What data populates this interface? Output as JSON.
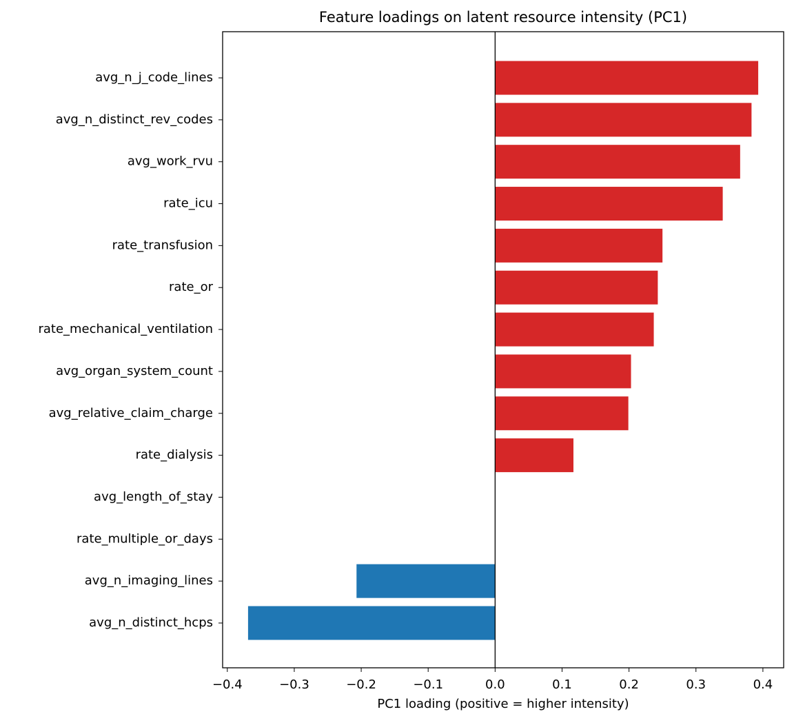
{
  "chart_data": {
    "type": "barh",
    "title": "Feature loadings on latent resource intensity (PC1)",
    "x_label": "PC1 loading (positive = higher intensity)",
    "categories": [
      "avg_n_j_code_lines",
      "avg_n_distinct_rev_codes",
      "avg_work_rvu",
      "rate_icu",
      "rate_transfusion",
      "rate_or",
      "rate_mechanical_ventilation",
      "avg_organ_system_count",
      "avg_relative_claim_charge",
      "rate_dialysis",
      "avg_length_of_stay",
      "rate_multiple_or_days",
      "avg_n_imaging_lines",
      "avg_n_distinct_hcps"
    ],
    "values": [
      0.393,
      0.383,
      0.366,
      0.34,
      0.25,
      0.243,
      0.237,
      0.203,
      0.199,
      0.117,
      0,
      0,
      -0.207,
      -0.369
    ],
    "positive_color": "#d62728",
    "negative_color": "#1f77b4",
    "xlim": [
      -0.407,
      0.431
    ],
    "xticks": [
      {
        "value": -0.4,
        "label": "−0.4"
      },
      {
        "value": -0.3,
        "label": "−0.3"
      },
      {
        "value": -0.2,
        "label": "−0.2"
      },
      {
        "value": -0.1,
        "label": "−0.1"
      },
      {
        "value": 0,
        "label": "0.0"
      },
      0.1,
      0.2,
      0.3,
      0.4
    ],
    "grid": false
  }
}
